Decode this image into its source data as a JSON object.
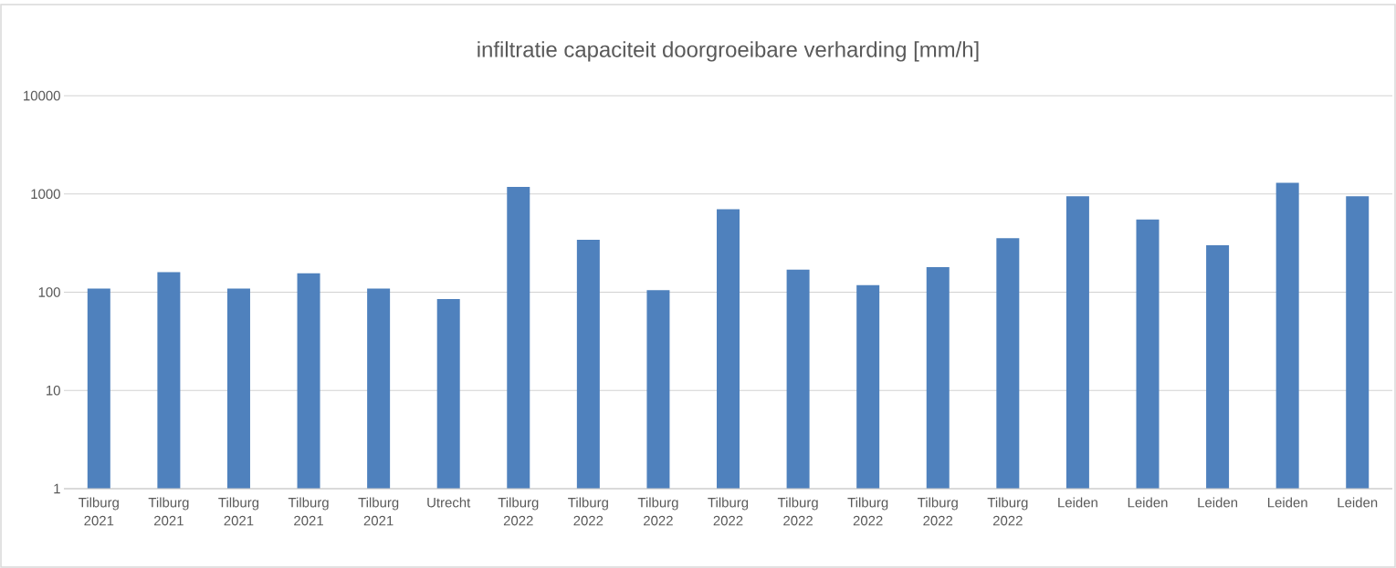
{
  "chart_data": {
    "type": "bar",
    "title": "infiltratie capaciteit doorgroeibare verharding [mm/h]",
    "categories": [
      "Tilburg 2021",
      "Tilburg 2021",
      "Tilburg 2021",
      "Tilburg 2021",
      "Tilburg 2021",
      "Utrecht",
      "Tilburg 2022",
      "Tilburg 2022",
      "Tilburg 2022",
      "Tilburg 2022",
      "Tilburg 2022",
      "Tilburg 2022",
      "Tilburg 2022",
      "Tilburg 2022",
      "Leiden",
      "Leiden",
      "Leiden",
      "Leiden",
      "Leiden"
    ],
    "values": [
      109,
      160,
      109,
      156,
      109,
      85,
      1180,
      342,
      105,
      700,
      170,
      118,
      180,
      355,
      950,
      550,
      300,
      1300,
      950
    ],
    "color": "#4f81bd",
    "log": true,
    "ylim": [
      1,
      10000
    ],
    "yticks": [
      1,
      10,
      100,
      1000,
      10000
    ],
    "grid": "y"
  }
}
